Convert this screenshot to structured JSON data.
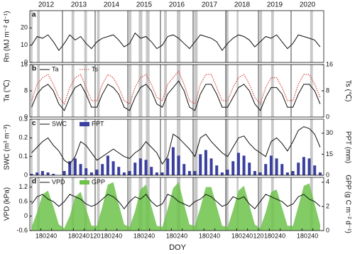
{
  "shared": {
    "years": [
      "2012",
      "2013",
      "2014",
      "2015",
      "2016",
      "2017",
      "2018",
      "2019",
      "2020"
    ],
    "xlabel": "DOY",
    "xlim": [
      0,
      1620
    ],
    "x": [
      10,
      40,
      70,
      100,
      130,
      160,
      190,
      220,
      250,
      280,
      310,
      340,
      370,
      400,
      430,
      460,
      490,
      520,
      550,
      580,
      610,
      640,
      670,
      700,
      730,
      760,
      790,
      820,
      850,
      880,
      910,
      940,
      970,
      1000,
      1030,
      1060,
      1090,
      1120,
      1150,
      1180,
      1210,
      1240,
      1270,
      1300,
      1330,
      1360,
      1390,
      1420,
      1450,
      1480,
      1510,
      1540,
      1570,
      1600
    ],
    "xticks": [
      {
        "value": 60,
        "label": "180"
      },
      {
        "value": 120,
        "label": "240"
      },
      {
        "value": 240,
        "label": "180"
      },
      {
        "value": 300,
        "label": "240"
      },
      {
        "value": 360,
        "label": "120"
      },
      {
        "value": 420,
        "label": "180"
      },
      {
        "value": 480,
        "label": "240"
      },
      {
        "value": 600,
        "label": "180"
      },
      {
        "value": 660,
        "label": "240"
      },
      {
        "value": 780,
        "label": "180"
      },
      {
        "value": 840,
        "label": "240"
      },
      {
        "value": 960,
        "label": "180"
      },
      {
        "value": 1020,
        "label": "240"
      },
      {
        "value": 1140,
        "label": "180"
      },
      {
        "value": 1200,
        "label": "240"
      },
      {
        "value": 1260,
        "label": "120"
      },
      {
        "value": 1320,
        "label": "180"
      },
      {
        "value": 1380,
        "label": "240"
      },
      {
        "value": 1500,
        "label": "180"
      },
      {
        "value": 1560,
        "label": "240"
      }
    ],
    "shaded": [
      [
        5,
        15
      ],
      [
        40,
        55
      ],
      [
        230,
        245
      ],
      [
        300,
        315
      ],
      [
        370,
        385
      ],
      [
        545,
        560
      ],
      [
        600,
        620
      ],
      [
        640,
        660
      ],
      [
        740,
        755
      ],
      [
        810,
        830
      ],
      [
        905,
        925
      ],
      [
        1080,
        1095
      ],
      [
        1140,
        1150
      ],
      [
        1265,
        1280
      ],
      [
        1330,
        1345
      ],
      [
        1545,
        1560
      ]
    ]
  },
  "chart_data": [
    {
      "type": "line",
      "label": "a",
      "ylabel": "Rn (MJ m⁻² d⁻¹)",
      "ylim": [
        0,
        30
      ],
      "yticks": [
        0,
        10,
        20
      ],
      "series": [
        {
          "color": "#111111",
          "kind": "line",
          "values": [
            10,
            15,
            14,
            16,
            12,
            7,
            11,
            16,
            13,
            15,
            11,
            8,
            12,
            14,
            15,
            16,
            13,
            9,
            11,
            17,
            14,
            15,
            12,
            8,
            10,
            15,
            16,
            14,
            11,
            8,
            12,
            16,
            15,
            14,
            12,
            7,
            11,
            14,
            16,
            15,
            13,
            9,
            12,
            15,
            14,
            16,
            12,
            8,
            11,
            16,
            15,
            14,
            13,
            9
          ]
        }
      ]
    },
    {
      "type": "line",
      "label": "b",
      "ylabel": "Ta (℃)",
      "y2label": "Ts (℃)",
      "ylim": [
        0,
        16
      ],
      "yticks": [
        0,
        8,
        16
      ],
      "y2lim": [
        0,
        16
      ],
      "y2ticks": [
        0,
        8,
        16
      ],
      "series": [
        {
          "name": "Ta",
          "color": "#111111",
          "kind": "line",
          "values": [
            3,
            7,
            9,
            10,
            8,
            4,
            2,
            6,
            9,
            10,
            7,
            3,
            3,
            7,
            10,
            9,
            7,
            3,
            2,
            6,
            9,
            10,
            8,
            4,
            3,
            7,
            9,
            11,
            8,
            3,
            2,
            7,
            10,
            10,
            7,
            3,
            3,
            6,
            9,
            10,
            8,
            4,
            2,
            6,
            9,
            9,
            7,
            3,
            3,
            7,
            10,
            10,
            8,
            4
          ]
        },
        {
          "name": "Ts",
          "color": "#d9473f",
          "kind": "dotted",
          "axis": "y2",
          "values": [
            5,
            10,
            12,
            13,
            10,
            6,
            4,
            9,
            12,
            13,
            9,
            5,
            5,
            10,
            13,
            12,
            9,
            5,
            4,
            9,
            12,
            13,
            10,
            6,
            5,
            10,
            12,
            14,
            10,
            5,
            4,
            10,
            13,
            13,
            9,
            5,
            5,
            9,
            12,
            13,
            10,
            6,
            4,
            9,
            12,
            12,
            9,
            5,
            5,
            10,
            13,
            13,
            10,
            6
          ]
        }
      ]
    },
    {
      "type": "line",
      "label": "c",
      "ylabel": "SWC (m³ m⁻³)",
      "y2label": "PPT (mm)",
      "ylim": [
        0,
        0.3
      ],
      "yticks": [
        0,
        0.1,
        0.2,
        0.3
      ],
      "y2lim": [
        0,
        40
      ],
      "y2ticks": [
        0,
        15,
        30
      ],
      "series": [
        {
          "name": "SWC",
          "color": "#111111",
          "kind": "line",
          "values": [
            0.12,
            0.15,
            0.18,
            0.2,
            0.16,
            0.13,
            0.08,
            0.06,
            0.1,
            0.18,
            0.16,
            0.12,
            0.08,
            0.1,
            0.12,
            0.14,
            0.12,
            0.1,
            0.09,
            0.12,
            0.14,
            0.18,
            0.15,
            0.12,
            0.06,
            0.1,
            0.22,
            0.2,
            0.17,
            0.14,
            0.1,
            0.2,
            0.22,
            0.18,
            0.15,
            0.12,
            0.1,
            0.15,
            0.2,
            0.21,
            0.17,
            0.14,
            0.12,
            0.1,
            0.18,
            0.2,
            0.17,
            0.13,
            0.18,
            0.24,
            0.26,
            0.25,
            0.22,
            0.15
          ]
        },
        {
          "name": "PPT",
          "color": "#3a3fa0",
          "kind": "bar",
          "axis": "y2",
          "values": [
            1,
            2,
            3,
            2,
            1,
            0,
            3,
            10,
            12,
            8,
            5,
            2,
            4,
            8,
            14,
            10,
            6,
            2,
            3,
            9,
            12,
            11,
            6,
            2,
            2,
            12,
            20,
            14,
            8,
            3,
            3,
            15,
            18,
            12,
            7,
            2,
            4,
            10,
            16,
            14,
            9,
            3,
            2,
            8,
            14,
            12,
            8,
            2,
            3,
            9,
            13,
            12,
            7,
            2
          ]
        }
      ]
    },
    {
      "type": "line",
      "label": "d",
      "ylabel": "VPD (kPa)",
      "y2label": "GPP (g C m⁻² d⁻¹)",
      "ylim": [
        -0.6,
        1.6
      ],
      "yticks": [
        -0.6,
        0,
        0.6,
        1.2
      ],
      "y2lim": [
        0,
        4.4
      ],
      "y2ticks": [
        0,
        2,
        4
      ],
      "series": [
        {
          "name": "VPD",
          "color": "#111111",
          "kind": "line",
          "values": [
            0.5,
            0.8,
            0.9,
            0.7,
            0.6,
            0.4,
            0.6,
            0.9,
            0.8,
            0.7,
            0.5,
            0.4,
            0.5,
            0.7,
            0.9,
            0.8,
            0.6,
            0.3,
            0.6,
            0.8,
            0.7,
            0.9,
            0.6,
            0.4,
            0.5,
            0.9,
            0.8,
            0.6,
            0.5,
            0.4,
            0.6,
            0.7,
            0.9,
            0.8,
            0.6,
            0.4,
            0.5,
            0.8,
            0.7,
            0.8,
            0.5,
            0.3,
            0.6,
            0.9,
            0.8,
            0.7,
            0.6,
            0.4,
            0.5,
            0.8,
            0.9,
            0.7,
            0.6,
            0.4
          ]
        },
        {
          "name": "GPP",
          "color": "#6cc24a",
          "kind": "area",
          "axis": "y2",
          "values": [
            0.3,
            1.5,
            3,
            3.3,
            2,
            0.5,
            0.2,
            1.2,
            2.8,
            3.2,
            1.8,
            0.4,
            0.4,
            2,
            3.8,
            4,
            2.2,
            0.5,
            0.3,
            1.6,
            3.4,
            3.8,
            2,
            0.4,
            0.3,
            1.8,
            3.5,
            4,
            2.2,
            0.5,
            0.4,
            1.9,
            3.6,
            3.6,
            2,
            0.4,
            0.3,
            1.7,
            3.3,
            3.7,
            2.1,
            0.5,
            0.2,
            1.5,
            3.2,
            3.4,
            1.9,
            0.4,
            0.4,
            2,
            3.7,
            3.9,
            2.2,
            0.5
          ]
        }
      ]
    }
  ]
}
